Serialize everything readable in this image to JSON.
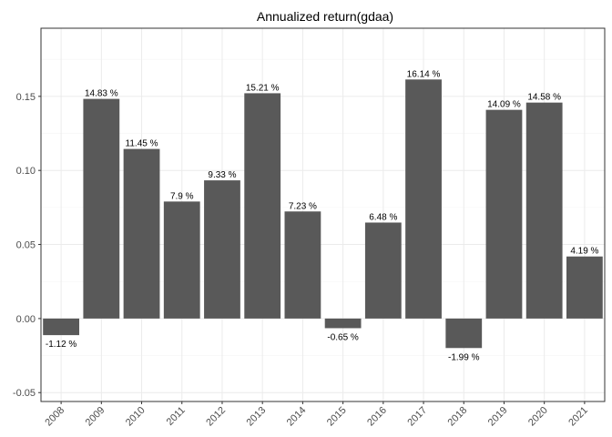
{
  "chart_data": {
    "type": "bar",
    "title": "Annualized return(gdaa)",
    "xlabel": "",
    "ylabel": "",
    "categories": [
      "2008",
      "2009",
      "2010",
      "2011",
      "2012",
      "2013",
      "2014",
      "2015",
      "2016",
      "2017",
      "2018",
      "2019",
      "2020",
      "2021"
    ],
    "values": [
      -0.0112,
      0.1483,
      0.1145,
      0.079,
      0.0933,
      0.1521,
      0.0723,
      -0.0065,
      0.0648,
      0.1614,
      -0.0199,
      0.1409,
      0.1458,
      0.0419
    ],
    "data_labels": [
      "-1.12 %",
      "14.83 %",
      "11.45 %",
      "7.9 %",
      "9.33 %",
      "15.21 %",
      "7.23 %",
      "-0.65 %",
      "6.48 %",
      "16.14 %",
      "-1.99 %",
      "14.09 %",
      "14.58 %",
      "4.19 %"
    ],
    "ylim": [
      -0.056,
      0.196
    ],
    "yticks": [
      -0.05,
      0.0,
      0.05,
      0.1,
      0.15
    ],
    "ytick_labels": [
      "-0.05",
      "0.00",
      "0.05",
      "0.10",
      "0.15"
    ],
    "grid": true,
    "legend": "none",
    "x_tick_rotation": "45 degrees",
    "colors": {
      "bar": "#595959",
      "grid_major": "#ebebeb",
      "grid_minor": "#f5f5f5",
      "panel_border": "#333333",
      "axis_text": "#4d4d4d"
    }
  }
}
